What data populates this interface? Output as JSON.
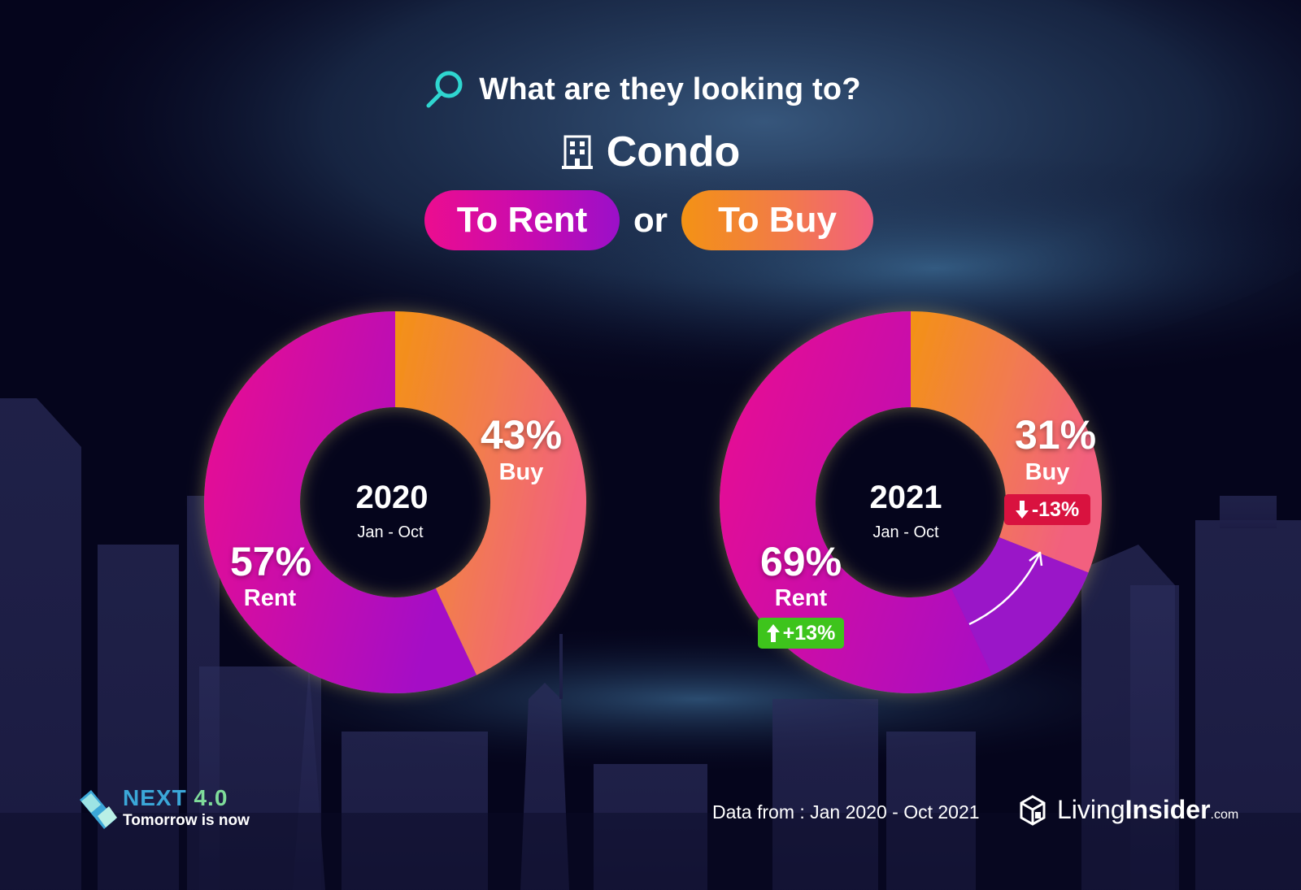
{
  "header": {
    "question": "What are they looking to?",
    "property_type": "Condo",
    "rent_pill": "To Rent",
    "or_text": "or",
    "buy_pill": "To Buy"
  },
  "colors": {
    "rent_start": "#ec0d8f",
    "rent_end": "#9b10c9",
    "buy_start": "#f39214",
    "buy_end": "#f2607f",
    "shift_segment": "#9a12c8",
    "increase_badge": "#3ec41c",
    "decrease_badge": "#d9123f",
    "accent_cyan": "#2fd6d0",
    "next_green": "#7fdc9a"
  },
  "chart_data": [
    {
      "type": "pie",
      "year": "2020",
      "period": "Jan - Oct",
      "slices": [
        {
          "label": "Rent",
          "value": 57,
          "display": "57%"
        },
        {
          "label": "Buy",
          "value": 43,
          "display": "43%"
        }
      ]
    },
    {
      "type": "pie",
      "year": "2021",
      "period": "Jan - Oct",
      "slices": [
        {
          "label": "Rent",
          "value": 69,
          "display": "69%",
          "change": "+13%"
        },
        {
          "label": "Buy",
          "value": 31,
          "display": "31%",
          "change": "-13%"
        }
      ],
      "shift_from_previous": 12
    }
  ],
  "footer": {
    "brand_name_a": "NEXT",
    "brand_name_b": "4.0",
    "brand_tagline": "Tomorrow is now",
    "source": "Data from : Jan 2020 - Oct 2021",
    "logo_a": "Living",
    "logo_b": "Insider",
    "logo_c": ".com"
  },
  "icons": {
    "headline": "search-icon",
    "property": "building-icon",
    "up": "arrow-up-icon",
    "down": "arrow-down-icon",
    "brand": "next-logo-icon",
    "livinginsider": "house-cube-icon"
  }
}
